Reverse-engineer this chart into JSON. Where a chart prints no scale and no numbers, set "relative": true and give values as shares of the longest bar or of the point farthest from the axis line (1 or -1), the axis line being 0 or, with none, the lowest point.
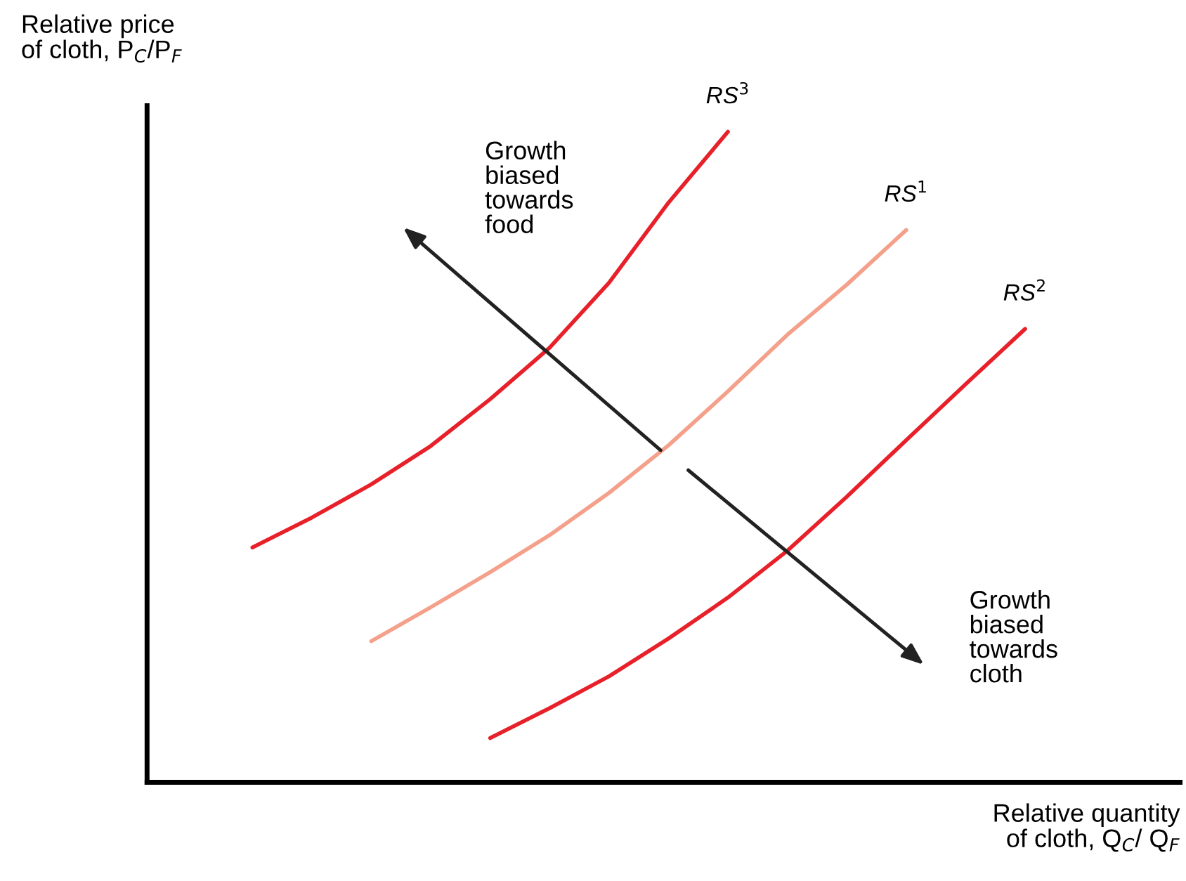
{
  "chart_data": {
    "type": "line",
    "relative": true,
    "xlabel": "Relative quantity\nof cloth, Q$_{C}$/ Q$_{F}$",
    "ylabel": "Relative price\nof cloth, P$_{C}$/P$_{F}$",
    "legend": false,
    "marker": "none",
    "line_style": "solid",
    "categories": [
      null,
      null,
      null,
      null,
      null,
      null,
      null,
      null,
      null,
      null,
      null,
      null,
      null,
      null
    ],
    "annotations": [
      "Growth\nbiased\ntowards\nfood",
      "Growth\nbiased\ntowards\ncloth"
    ],
    "series": [
      {
        "name": "RS$^{3}$",
        "color": "#e8202a",
        "values": [
          0.361,
          0.407,
          0.458,
          0.517,
          0.589,
          0.668,
          0.768,
          0.891,
          1,
          null,
          null,
          null,
          null,
          null
        ]
      },
      {
        "name": "RS$^{1}$",
        "color": "#f4a08a",
        "values": [
          null,
          null,
          0.217,
          0.269,
          0.323,
          0.38,
          0.445,
          0.518,
          0.601,
          0.688,
          0.765,
          0.849,
          null,
          null
        ]
      },
      {
        "name": "RS$^{2}$",
        "color": "#e8202a",
        "values": [
          null,
          null,
          null,
          null,
          0.068,
          0.114,
          0.163,
          0.221,
          0.284,
          0.356,
          0.439,
          0.526,
          0.612,
          0.697
        ]
      }
    ]
  }
}
